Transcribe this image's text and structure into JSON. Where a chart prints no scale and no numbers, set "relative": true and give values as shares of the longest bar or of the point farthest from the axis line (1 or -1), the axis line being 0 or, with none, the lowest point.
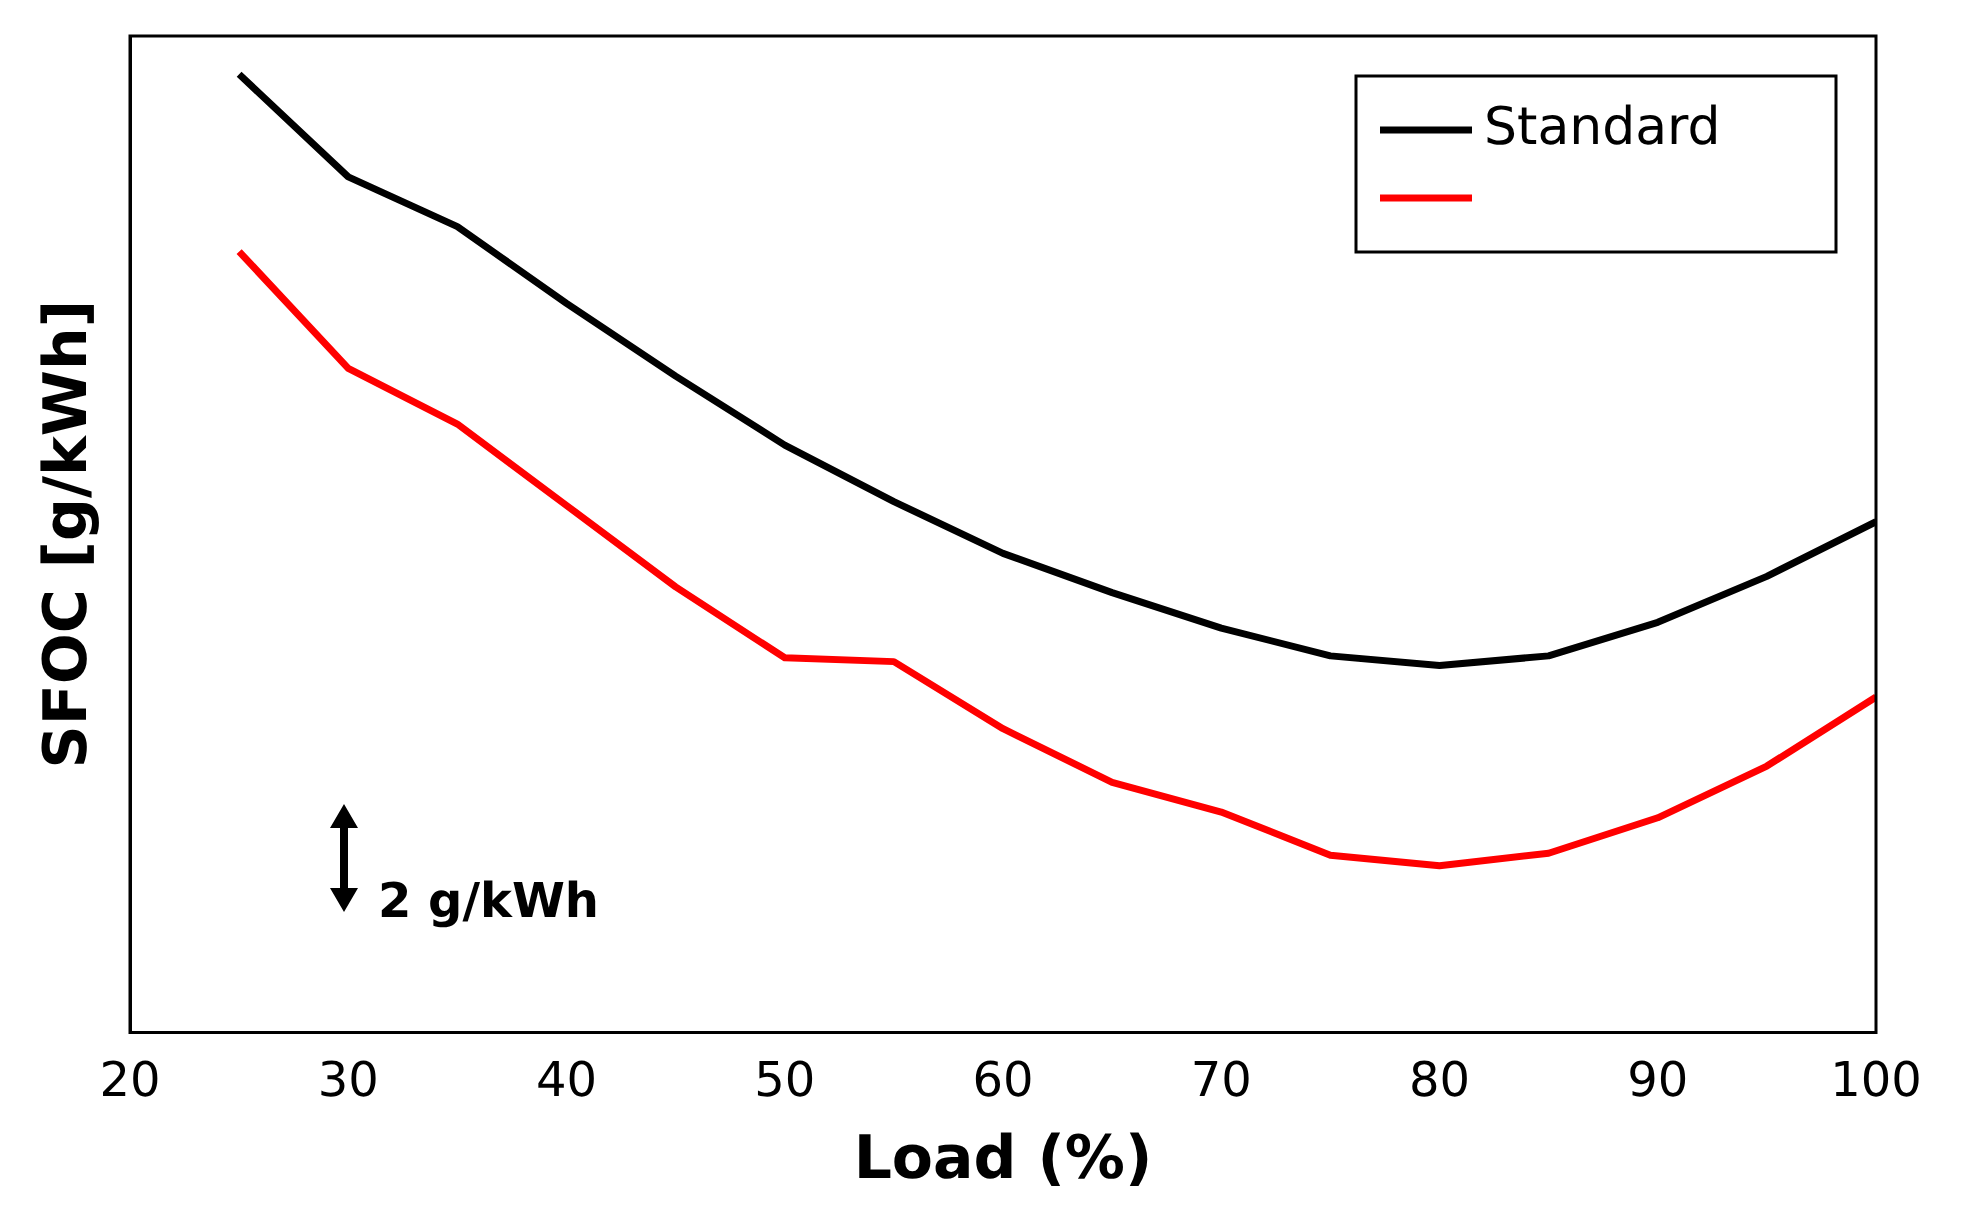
{
  "chart_data": {
    "type": "line",
    "relative": true,
    "xlabel": "Load (%)",
    "ylabel": "SFOC [g/kWh]",
    "x": [
      25,
      30,
      35,
      40,
      45,
      50,
      55,
      60,
      65,
      70,
      75,
      80,
      85,
      90,
      95,
      100
    ],
    "xlim": [
      20,
      100
    ],
    "xticks": [
      20,
      30,
      40,
      50,
      60,
      70,
      80,
      90,
      100
    ],
    "legend": "top right",
    "marker": "none",
    "line_style": "solid",
    "annotations": [
      "2 g/kWh"
    ],
    "series": [
      {
        "name": "Standard",
        "color": "#000000",
        "values": [
          1,
          0.893,
          0.841,
          0.761,
          0.685,
          0.613,
          0.554,
          0.5,
          0.459,
          0.422,
          0.393,
          0.383,
          0.393,
          0.428,
          0.476,
          0.533
        ]
      },
      {
        "color": "#ff0000",
        "values": [
          0.815,
          0.693,
          0.635,
          0.55,
          0.465,
          0.391,
          0.387,
          0.317,
          0.261,
          0.23,
          0.185,
          0.174,
          0.187,
          0.224,
          0.278,
          0.35
        ]
      }
    ]
  }
}
